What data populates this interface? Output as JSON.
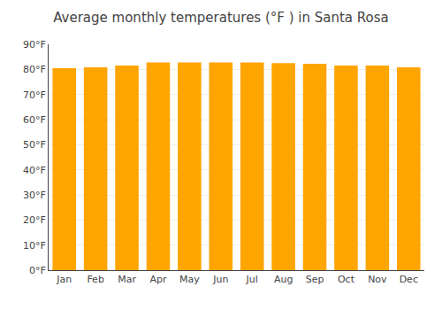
{
  "chart_data": {
    "type": "bar",
    "title": "Average monthly temperatures (°F ) in Santa Rosa",
    "categories": [
      "Jan",
      "Feb",
      "Mar",
      "Apr",
      "May",
      "Jun",
      "Jul",
      "Aug",
      "Sep",
      "Oct",
      "Nov",
      "Dec"
    ],
    "values": [
      80.5,
      80.8,
      81.5,
      82.8,
      82.8,
      82.8,
      82.8,
      82.5,
      82.2,
      81.5,
      81.5,
      80.8
    ],
    "color": "#FFA500",
    "ylim": [
      0,
      90
    ],
    "yticks": [
      {
        "value": 0,
        "label": "0°F"
      },
      {
        "value": 10,
        "label": "10°F"
      },
      {
        "value": 20,
        "label": "20°F"
      },
      {
        "value": 30,
        "label": "30°F"
      },
      {
        "value": 40,
        "label": "40°F"
      },
      {
        "value": 50,
        "label": "50°F"
      },
      {
        "value": 60,
        "label": "60°F"
      },
      {
        "value": 70,
        "label": "70°F"
      },
      {
        "value": 80,
        "label": "80°F"
      },
      {
        "value": 90,
        "label": "90°F"
      }
    ],
    "grid": true
  }
}
